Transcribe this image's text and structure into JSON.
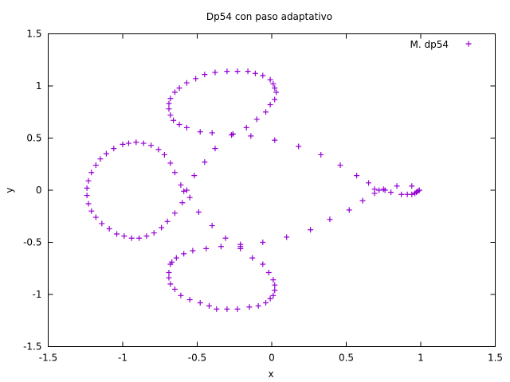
{
  "chart_data": {
    "type": "scatter",
    "title": "Dp54 con paso adaptativo",
    "xlabel": "x",
    "ylabel": "y",
    "xlim": [
      -1.5,
      1.5
    ],
    "ylim": [
      -1.5,
      1.5
    ],
    "x_ticks": [
      -1.5,
      -1,
      -0.5,
      0,
      0.5,
      1,
      1.5
    ],
    "x_tick_labels": [
      "-1.5",
      "-1",
      "-0.5",
      "0",
      "0.5",
      "1",
      "1.5"
    ],
    "y_ticks": [
      -1.5,
      -1,
      -0.5,
      0,
      0.5,
      1,
      1.5
    ],
    "y_tick_labels": [
      "-1.5",
      "-1",
      "-0.5",
      "0",
      "0.5",
      "1",
      "1.5"
    ],
    "grid": false,
    "legend_position": "top-right",
    "series": [
      {
        "name": "M. dp54",
        "color": "#9400d3",
        "marker": "plus",
        "points": [
          [
            0.99,
            0.0
          ],
          [
            0.98,
            -0.01
          ],
          [
            0.97,
            -0.02
          ],
          [
            0.96,
            -0.03
          ],
          [
            0.94,
            -0.04
          ],
          [
            0.91,
            -0.04
          ],
          [
            0.87,
            -0.04
          ],
          [
            0.8,
            -0.02
          ],
          [
            0.76,
            0.0
          ],
          [
            0.72,
            0.0
          ],
          [
            0.69,
            -0.03
          ],
          [
            0.65,
            0.07
          ],
          [
            0.57,
            0.14
          ],
          [
            0.46,
            0.24
          ],
          [
            0.33,
            0.34
          ],
          [
            0.18,
            0.42
          ],
          [
            0.02,
            0.48
          ],
          [
            -0.14,
            0.52
          ],
          [
            -0.27,
            0.53
          ],
          [
            -0.38,
            0.4
          ],
          [
            -0.45,
            0.27
          ],
          [
            -0.52,
            0.14
          ],
          [
            -0.57,
            0.0
          ],
          [
            -0.6,
            -0.12
          ],
          [
            -0.65,
            -0.22
          ],
          [
            -0.7,
            -0.3
          ],
          [
            -0.74,
            -0.36
          ],
          [
            -0.79,
            -0.41
          ],
          [
            -0.84,
            -0.44
          ],
          [
            -0.89,
            -0.46
          ],
          [
            -0.94,
            -0.46
          ],
          [
            -0.99,
            -0.44
          ],
          [
            -1.04,
            -0.42
          ],
          [
            -1.09,
            -0.37
          ],
          [
            -1.14,
            -0.32
          ],
          [
            -1.18,
            -0.26
          ],
          [
            -1.21,
            -0.2
          ],
          [
            -1.23,
            -0.13
          ],
          [
            -1.24,
            -0.05
          ],
          [
            -1.24,
            0.02
          ],
          [
            -1.23,
            0.09
          ],
          [
            -1.21,
            0.17
          ],
          [
            -1.18,
            0.24
          ],
          [
            -1.15,
            0.3
          ],
          [
            -1.11,
            0.35
          ],
          [
            -1.06,
            0.4
          ],
          [
            -1.0,
            0.44
          ],
          [
            -0.96,
            0.45
          ],
          [
            -0.91,
            0.46
          ],
          [
            -0.86,
            0.45
          ],
          [
            -0.81,
            0.43
          ],
          [
            -0.76,
            0.39
          ],
          [
            -0.72,
            0.34
          ],
          [
            -0.68,
            0.26
          ],
          [
            -0.65,
            0.17
          ],
          [
            -0.61,
            0.05
          ],
          [
            -0.59,
            -0.01
          ],
          [
            -0.55,
            -0.07
          ],
          [
            -0.49,
            -0.21
          ],
          [
            -0.4,
            -0.34
          ],
          [
            -0.31,
            -0.46
          ],
          [
            -0.21,
            -0.52
          ],
          [
            -0.21,
            -0.56
          ],
          [
            -0.13,
            -0.65
          ],
          [
            -0.06,
            -0.71
          ],
          [
            -0.02,
            -0.79
          ],
          [
            0.01,
            -0.86
          ],
          [
            0.02,
            -0.91
          ],
          [
            0.02,
            -0.96
          ],
          [
            0.01,
            -1.01
          ],
          [
            -0.01,
            -1.04
          ],
          [
            -0.04,
            -1.08
          ],
          [
            -0.09,
            -1.11
          ],
          [
            -0.15,
            -1.12
          ],
          [
            -0.23,
            -1.14
          ],
          [
            -0.3,
            -1.14
          ],
          [
            -0.37,
            -1.14
          ],
          [
            -0.42,
            -1.11
          ],
          [
            -0.48,
            -1.08
          ],
          [
            -0.55,
            -1.05
          ],
          [
            -0.61,
            -1.01
          ],
          [
            -0.65,
            -0.95
          ],
          [
            -0.68,
            -0.9
          ],
          [
            -0.69,
            -0.84
          ],
          [
            -0.69,
            -0.79
          ],
          [
            -0.68,
            -0.71
          ],
          [
            -0.67,
            -0.69
          ],
          [
            -0.64,
            -0.65
          ],
          [
            -0.59,
            -0.61
          ],
          [
            -0.53,
            -0.58
          ],
          [
            -0.44,
            -0.56
          ],
          [
            -0.34,
            -0.54
          ],
          [
            -0.21,
            -0.54
          ],
          [
            -0.06,
            -0.5
          ],
          [
            0.1,
            -0.45
          ],
          [
            0.26,
            -0.38
          ],
          [
            0.39,
            -0.28
          ],
          [
            0.52,
            -0.19
          ],
          [
            0.61,
            -0.1
          ],
          [
            0.69,
            0.01
          ],
          [
            0.75,
            0.01
          ],
          [
            0.84,
            0.04
          ],
          [
            0.94,
            0.04
          ],
          [
            0.99,
            0.0
          ],
          [
            -0.01,
            0.82
          ],
          [
            -0.04,
            0.75
          ],
          [
            -0.1,
            0.68
          ],
          [
            -0.17,
            0.6
          ],
          [
            -0.26,
            0.54
          ],
          [
            -0.4,
            0.55
          ],
          [
            -0.48,
            0.56
          ],
          [
            -0.57,
            0.6
          ],
          [
            -0.62,
            0.63
          ],
          [
            -0.66,
            0.67
          ],
          [
            -0.68,
            0.72
          ],
          [
            -0.69,
            0.78
          ],
          [
            -0.69,
            0.83
          ],
          [
            -0.68,
            0.88
          ],
          [
            -0.65,
            0.94
          ],
          [
            -0.62,
            0.98
          ],
          [
            -0.57,
            1.03
          ],
          [
            -0.51,
            1.07
          ],
          [
            -0.45,
            1.11
          ],
          [
            -0.38,
            1.13
          ],
          [
            -0.3,
            1.14
          ],
          [
            -0.23,
            1.14
          ],
          [
            -0.16,
            1.14
          ],
          [
            -0.11,
            1.12
          ],
          [
            -0.06,
            1.1
          ],
          [
            -0.01,
            1.06
          ],
          [
            0.01,
            1.02
          ],
          [
            0.02,
            0.98
          ],
          [
            0.03,
            0.94
          ],
          [
            0.02,
            0.87
          ]
        ]
      }
    ]
  }
}
